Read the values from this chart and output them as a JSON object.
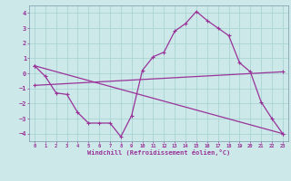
{
  "xlabel": "Windchill (Refroidissement éolien,°C)",
  "background_color": "#cce8e8",
  "grid_color": "#aad4d4",
  "line_color": "#993399",
  "spine_color": "#7799aa",
  "xlim": [
    -0.5,
    23.5
  ],
  "ylim": [
    -4.5,
    4.5
  ],
  "yticks": [
    -4,
    -3,
    -2,
    -1,
    0,
    1,
    2,
    3,
    4
  ],
  "xticks": [
    0,
    1,
    2,
    3,
    4,
    5,
    6,
    7,
    8,
    9,
    10,
    11,
    12,
    13,
    14,
    15,
    16,
    17,
    18,
    19,
    20,
    21,
    22,
    23
  ],
  "curve1_x": [
    0,
    1,
    2,
    3,
    4,
    5,
    6,
    7,
    8,
    9,
    10,
    11,
    12,
    13,
    14,
    15,
    16,
    17,
    18,
    19,
    20,
    21,
    22,
    23
  ],
  "curve1_y": [
    0.5,
    -0.2,
    -1.3,
    -1.4,
    -2.6,
    -3.3,
    -3.3,
    -3.3,
    -4.2,
    -2.8,
    0.2,
    1.1,
    1.4,
    2.8,
    3.3,
    4.1,
    3.5,
    3.0,
    2.5,
    0.7,
    0.1,
    -1.9,
    -3.0,
    -4.0
  ],
  "curve2_x": [
    0,
    23
  ],
  "curve2_y": [
    0.5,
    -4.0
  ],
  "curve3_x": [
    0,
    23
  ],
  "curve3_y": [
    -0.8,
    0.1
  ],
  "marker": "+"
}
